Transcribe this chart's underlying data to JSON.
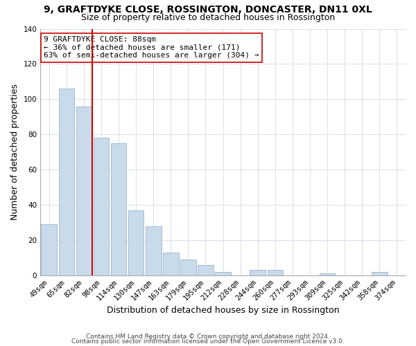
{
  "title": "9, GRAFTDYKE CLOSE, ROSSINGTON, DONCASTER, DN11 0XL",
  "subtitle": "Size of property relative to detached houses in Rossington",
  "xlabel": "Distribution of detached houses by size in Rossington",
  "ylabel": "Number of detached properties",
  "categories": [
    "49sqm",
    "65sqm",
    "82sqm",
    "98sqm",
    "114sqm",
    "130sqm",
    "147sqm",
    "163sqm",
    "179sqm",
    "195sqm",
    "212sqm",
    "228sqm",
    "244sqm",
    "260sqm",
    "277sqm",
    "293sqm",
    "309sqm",
    "325sqm",
    "342sqm",
    "358sqm",
    "374sqm"
  ],
  "values": [
    29,
    106,
    96,
    78,
    75,
    37,
    28,
    13,
    9,
    6,
    2,
    0,
    3,
    3,
    0,
    0,
    1,
    0,
    0,
    2,
    0
  ],
  "bar_color": "#c9daea",
  "bar_edge_color": "#9ab5cc",
  "vline_x": 2.5,
  "vline_color": "#cc0000",
  "ylim": [
    0,
    140
  ],
  "annotation_line1": "9 GRAFTDYKE CLOSE: 88sqm",
  "annotation_line2": "← 36% of detached houses are smaller (171)",
  "annotation_line3": "63% of semi-detached houses are larger (304) →",
  "footer1": "Contains HM Land Registry data © Crown copyright and database right 2024.",
  "footer2": "Contains public sector information licensed under the Open Government Licence v3.0.",
  "title_fontsize": 10,
  "subtitle_fontsize": 9,
  "axis_label_fontsize": 9,
  "tick_fontsize": 7.5,
  "annotation_fontsize": 8,
  "footer_fontsize": 6.5
}
